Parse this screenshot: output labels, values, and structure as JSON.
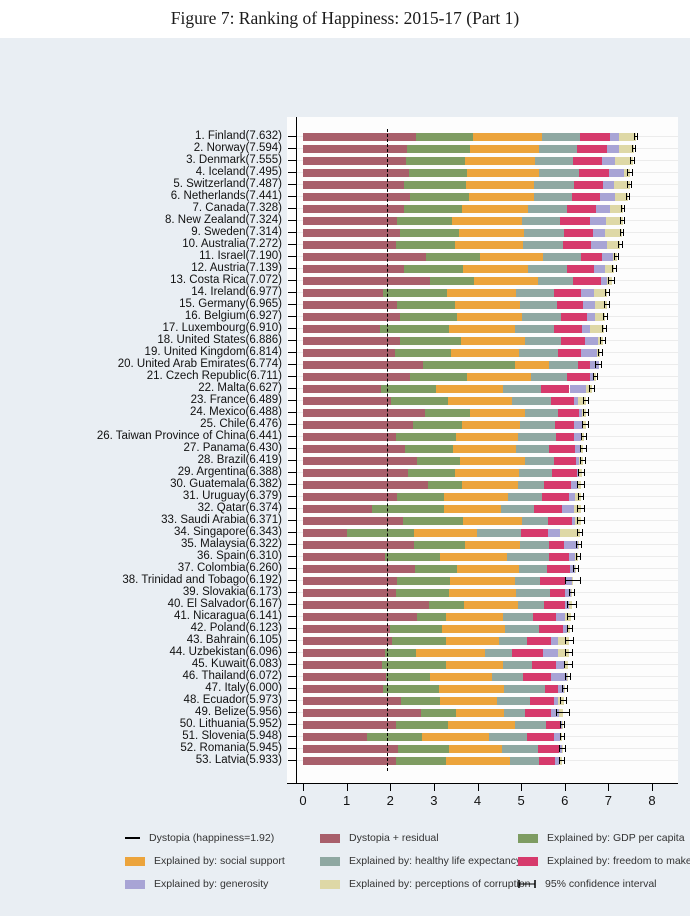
{
  "chart_data": {
    "type": "bar",
    "orientation": "horizontal-stacked",
    "title": "Figure 7: Ranking of Happiness: 2015-17 (Part 1)",
    "xlabel": "",
    "ylabel": "",
    "xlim": [
      0,
      8
    ],
    "xticks": [
      0,
      1,
      2,
      3,
      4,
      5,
      6,
      7,
      8
    ],
    "grid": false,
    "dystopia_line": 1.92,
    "series": [
      {
        "key": "residual",
        "name": "Dystopia + residual",
        "color": "#a85f6b"
      },
      {
        "key": "gdp",
        "name": "Explained by: GDP per capita",
        "color": "#7e9c62"
      },
      {
        "key": "social",
        "name": "Explained by: social support",
        "color": "#eca43c"
      },
      {
        "key": "health",
        "name": "Explained by: healthy life expectancy",
        "color": "#8fa8a2"
      },
      {
        "key": "freedom",
        "name": "Explained by: freedom to make life choices",
        "color": "#d63a6c"
      },
      {
        "key": "generosity",
        "name": "Explained by: generosity",
        "color": "#a8a4d5"
      },
      {
        "key": "corruption",
        "name": "Explained by: perceptions of corruption",
        "color": "#ded8a6"
      }
    ],
    "countries": [
      {
        "rank": 1,
        "name": "Finland",
        "score": 7.632,
        "gdp": 1.305,
        "social": 1.592,
        "health": 0.874,
        "freedom": 0.681,
        "generosity": 0.202,
        "corruption": 0.393,
        "ci": 0.055
      },
      {
        "rank": 2,
        "name": "Norway",
        "score": 7.594,
        "gdp": 1.456,
        "social": 1.582,
        "health": 0.861,
        "freedom": 0.686,
        "generosity": 0.286,
        "corruption": 0.34,
        "ci": 0.05
      },
      {
        "rank": 3,
        "name": "Denmark",
        "score": 7.555,
        "gdp": 1.351,
        "social": 1.59,
        "health": 0.868,
        "freedom": 0.683,
        "generosity": 0.284,
        "corruption": 0.408,
        "ci": 0.055
      },
      {
        "rank": 4,
        "name": "Iceland",
        "score": 7.495,
        "gdp": 1.343,
        "social": 1.644,
        "health": 0.914,
        "freedom": 0.677,
        "generosity": 0.353,
        "corruption": 0.138,
        "ci": 0.06
      },
      {
        "rank": 5,
        "name": "Switzerland",
        "score": 7.487,
        "gdp": 1.42,
        "social": 1.549,
        "health": 0.927,
        "freedom": 0.66,
        "generosity": 0.256,
        "corruption": 0.357,
        "ci": 0.055
      },
      {
        "rank": 6,
        "name": "Netherlands",
        "score": 7.441,
        "gdp": 1.361,
        "social": 1.488,
        "health": 0.878,
        "freedom": 0.638,
        "generosity": 0.333,
        "corruption": 0.295,
        "ci": 0.045
      },
      {
        "rank": 7,
        "name": "Canada",
        "score": 7.328,
        "gdp": 1.33,
        "social": 1.532,
        "health": 0.896,
        "freedom": 0.653,
        "generosity": 0.321,
        "corruption": 0.291,
        "ci": 0.05
      },
      {
        "rank": 8,
        "name": "New Zealand",
        "score": 7.324,
        "gdp": 1.268,
        "social": 1.601,
        "health": 0.876,
        "freedom": 0.669,
        "generosity": 0.365,
        "corruption": 0.389,
        "ci": 0.055
      },
      {
        "rank": 9,
        "name": "Sweden",
        "score": 7.314,
        "gdp": 1.355,
        "social": 1.501,
        "health": 0.913,
        "freedom": 0.659,
        "generosity": 0.285,
        "corruption": 0.383,
        "ci": 0.055
      },
      {
        "rank": 10,
        "name": "Australia",
        "score": 7.272,
        "gdp": 1.34,
        "social": 1.573,
        "health": 0.91,
        "freedom": 0.647,
        "generosity": 0.361,
        "corruption": 0.302,
        "ci": 0.055
      },
      {
        "rank": 11,
        "name": "Israel",
        "score": 7.19,
        "gdp": 1.244,
        "social": 1.433,
        "health": 0.888,
        "freedom": 0.464,
        "generosity": 0.262,
        "corruption": 0.082,
        "ci": 0.06
      },
      {
        "rank": 12,
        "name": "Austria",
        "score": 7.139,
        "gdp": 1.341,
        "social": 1.504,
        "health": 0.891,
        "freedom": 0.617,
        "generosity": 0.242,
        "corruption": 0.224,
        "ci": 0.055
      },
      {
        "rank": 13,
        "name": "Costa Rica",
        "score": 7.072,
        "gdp": 1.01,
        "social": 1.459,
        "health": 0.817,
        "freedom": 0.632,
        "generosity": 0.143,
        "corruption": 0.101,
        "ci": 0.075
      },
      {
        "rank": 14,
        "name": "Ireland",
        "score": 6.977,
        "gdp": 1.448,
        "social": 1.583,
        "health": 0.876,
        "freedom": 0.614,
        "generosity": 0.307,
        "corruption": 0.306,
        "ci": 0.06
      },
      {
        "rank": 15,
        "name": "Germany",
        "score": 6.965,
        "gdp": 1.34,
        "social": 1.474,
        "health": 0.861,
        "freedom": 0.586,
        "generosity": 0.273,
        "corruption": 0.28,
        "ci": 0.065
      },
      {
        "rank": 16,
        "name": "Belgium",
        "score": 6.927,
        "gdp": 1.324,
        "social": 1.483,
        "health": 0.894,
        "freedom": 0.583,
        "generosity": 0.188,
        "corruption": 0.24,
        "ci": 0.055
      },
      {
        "rank": 17,
        "name": "Luxembourg",
        "score": 6.91,
        "gdp": 1.576,
        "social": 1.52,
        "health": 0.896,
        "freedom": 0.632,
        "generosity": 0.196,
        "corruption": 0.321,
        "ci": 0.06
      },
      {
        "rank": 18,
        "name": "United States",
        "score": 6.886,
        "gdp": 1.398,
        "social": 1.471,
        "health": 0.819,
        "freedom": 0.547,
        "generosity": 0.291,
        "corruption": 0.133,
        "ci": 0.07
      },
      {
        "rank": 19,
        "name": "United Kingdom",
        "score": 6.814,
        "gdp": 1.301,
        "social": 1.559,
        "health": 0.883,
        "freedom": 0.533,
        "generosity": 0.354,
        "corruption": 0.082,
        "ci": 0.055
      },
      {
        "rank": 20,
        "name": "United Arab Emirates",
        "score": 6.774,
        "gdp": 2.096,
        "social": 0.776,
        "health": 0.67,
        "freedom": 0.284,
        "generosity": 0.186,
        "corruption": 0.0,
        "ci": 0.075
      },
      {
        "rank": 21,
        "name": "Czech Republic",
        "score": 6.711,
        "gdp": 1.301,
        "social": 1.464,
        "health": 0.835,
        "freedom": 0.517,
        "generosity": 0.098,
        "corruption": 0.034,
        "ci": 0.06
      },
      {
        "rank": 22,
        "name": "Malta",
        "score": 6.627,
        "gdp": 1.27,
        "social": 1.525,
        "health": 0.884,
        "freedom": 0.645,
        "generosity": 0.376,
        "corruption": 0.142,
        "ci": 0.065
      },
      {
        "rank": 23,
        "name": "France",
        "score": 6.489,
        "gdp": 1.293,
        "social": 1.466,
        "health": 0.908,
        "freedom": 0.52,
        "generosity": 0.098,
        "corruption": 0.176,
        "ci": 0.06
      },
      {
        "rank": 24,
        "name": "Mexico",
        "score": 6.488,
        "gdp": 1.038,
        "social": 1.252,
        "health": 0.761,
        "freedom": 0.479,
        "generosity": 0.069,
        "corruption": 0.095,
        "ci": 0.075
      },
      {
        "rank": 25,
        "name": "Chile",
        "score": 6.476,
        "gdp": 1.131,
        "social": 1.331,
        "health": 0.808,
        "freedom": 0.431,
        "generosity": 0.197,
        "corruption": 0.061,
        "ci": 0.07
      },
      {
        "rank": 26,
        "name": "Taiwan Province of China",
        "score": 6.441,
        "gdp": 1.365,
        "social": 1.436,
        "health": 0.857,
        "freedom": 0.418,
        "generosity": 0.151,
        "corruption": 0.078,
        "ci": 0.06
      },
      {
        "rank": 27,
        "name": "Panama",
        "score": 6.43,
        "gdp": 1.112,
        "social": 1.438,
        "health": 0.759,
        "freedom": 0.597,
        "generosity": 0.125,
        "corruption": 0.063,
        "ci": 0.075
      },
      {
        "rank": 28,
        "name": "Brazil",
        "score": 6.419,
        "gdp": 0.986,
        "social": 1.474,
        "health": 0.675,
        "freedom": 0.493,
        "generosity": 0.088,
        "corruption": 0.082,
        "ci": 0.07
      },
      {
        "rank": 29,
        "name": "Argentina",
        "score": 6.388,
        "gdp": 1.073,
        "social": 1.468,
        "health": 0.744,
        "freedom": 0.57,
        "generosity": 0.062,
        "corruption": 0.054,
        "ci": 0.075
      },
      {
        "rank": 30,
        "name": "Guatemala",
        "score": 6.382,
        "gdp": 0.781,
        "social": 1.269,
        "health": 0.608,
        "freedom": 0.604,
        "generosity": 0.179,
        "corruption": 0.071,
        "ci": 0.09
      },
      {
        "rank": 31,
        "name": "Uruguay",
        "score": 6.379,
        "gdp": 1.093,
        "social": 1.459,
        "health": 0.771,
        "freedom": 0.625,
        "generosity": 0.13,
        "corruption": 0.155,
        "ci": 0.07
      },
      {
        "rank": 32,
        "name": "Qatar",
        "score": 6.374,
        "gdp": 1.649,
        "social": 1.303,
        "health": 0.748,
        "freedom": 0.654,
        "generosity": 0.256,
        "corruption": 0.171,
        "ci": 0.1
      },
      {
        "rank": 33,
        "name": "Saudi Arabia",
        "score": 6.371,
        "gdp": 1.379,
        "social": 1.331,
        "health": 0.614,
        "freedom": 0.536,
        "generosity": 0.08,
        "corruption": 0.132,
        "ci": 0.085
      },
      {
        "rank": 34,
        "name": "Singapore",
        "score": 6.343,
        "gdp": 1.529,
        "social": 1.451,
        "health": 1.008,
        "freedom": 0.631,
        "generosity": 0.261,
        "corruption": 0.457,
        "ci": 0.065
      },
      {
        "rank": 35,
        "name": "Malaysia",
        "score": 6.322,
        "gdp": 1.161,
        "social": 1.258,
        "health": 0.669,
        "freedom": 0.356,
        "generosity": 0.31,
        "corruption": 0.024,
        "ci": 0.075
      },
      {
        "rank": 36,
        "name": "Spain",
        "score": 6.31,
        "gdp": 1.251,
        "social": 1.538,
        "health": 0.965,
        "freedom": 0.449,
        "generosity": 0.142,
        "corruption": 0.074,
        "ci": 0.06
      },
      {
        "rank": 37,
        "name": "Colombia",
        "score": 6.26,
        "gdp": 0.96,
        "social": 1.439,
        "health": 0.635,
        "freedom": 0.531,
        "generosity": 0.099,
        "corruption": 0.034,
        "ci": 0.075
      },
      {
        "rank": 38,
        "name": "Trinidad and Tobago",
        "score": 6.192,
        "gdp": 1.223,
        "social": 1.492,
        "health": 0.564,
        "freedom": 0.575,
        "generosity": 0.171,
        "corruption": 0.019,
        "ci": 0.19
      },
      {
        "rank": 39,
        "name": "Slovakia",
        "score": 6.173,
        "gdp": 1.21,
        "social": 1.537,
        "health": 0.776,
        "freedom": 0.354,
        "generosity": 0.136,
        "corruption": 0.024,
        "ci": 0.065
      },
      {
        "rank": 40,
        "name": "El Salvador",
        "score": 6.167,
        "gdp": 0.794,
        "social": 1.242,
        "health": 0.596,
        "freedom": 0.477,
        "generosity": 0.093,
        "corruption": 0.074,
        "ci": 0.105
      },
      {
        "rank": 41,
        "name": "Nicaragua",
        "score": 6.141,
        "gdp": 0.668,
        "social": 1.3,
        "health": 0.7,
        "freedom": 0.527,
        "generosity": 0.208,
        "corruption": 0.128,
        "ci": 0.1
      },
      {
        "rank": 42,
        "name": "Poland",
        "score": 6.123,
        "gdp": 1.176,
        "social": 1.448,
        "health": 0.781,
        "freedom": 0.546,
        "generosity": 0.108,
        "corruption": 0.064,
        "ci": 0.065
      },
      {
        "rank": 43,
        "name": "Bahrain",
        "score": 6.105,
        "gdp": 1.223,
        "social": 1.215,
        "health": 0.657,
        "freedom": 0.536,
        "generosity": 0.172,
        "corruption": 0.257,
        "ci": 0.1
      },
      {
        "rank": 44,
        "name": "Uzbekistan",
        "score": 6.096,
        "gdp": 0.719,
        "social": 1.584,
        "health": 0.605,
        "freedom": 0.724,
        "generosity": 0.328,
        "corruption": 0.259,
        "ci": 0.085
      },
      {
        "rank": 45,
        "name": "Kuwait",
        "score": 6.083,
        "gdp": 1.474,
        "social": 1.301,
        "health": 0.675,
        "freedom": 0.554,
        "generosity": 0.167,
        "corruption": 0.106,
        "ci": 0.095
      },
      {
        "rank": 46,
        "name": "Thailand",
        "score": 6.072,
        "gdp": 1.016,
        "social": 1.417,
        "health": 0.707,
        "freedom": 0.637,
        "generosity": 0.364,
        "corruption": 0.029,
        "ci": 0.075
      },
      {
        "rank": 47,
        "name": "Italy",
        "score": 6.0,
        "gdp": 1.264,
        "social": 1.501,
        "health": 0.946,
        "freedom": 0.281,
        "generosity": 0.137,
        "corruption": 0.028,
        "ci": 0.07
      },
      {
        "rank": 48,
        "name": "Ecuador",
        "score": 5.973,
        "gdp": 0.896,
        "social": 1.312,
        "health": 0.761,
        "freedom": 0.544,
        "generosity": 0.105,
        "corruption": 0.12,
        "ci": 0.08
      },
      {
        "rank": 49,
        "name": "Belize",
        "score": 5.956,
        "gdp": 0.807,
        "social": 1.101,
        "health": 0.474,
        "freedom": 0.593,
        "generosity": 0.183,
        "corruption": 0.089,
        "ci": 0.16
      },
      {
        "rank": 50,
        "name": "Lithuania",
        "score": 5.952,
        "gdp": 1.197,
        "social": 1.527,
        "health": 0.716,
        "freedom": 0.35,
        "generosity": 0.026,
        "corruption": 0.006,
        "ci": 0.065
      },
      {
        "rank": 51,
        "name": "Slovenia",
        "score": 5.948,
        "gdp": 1.258,
        "social": 1.523,
        "health": 0.886,
        "freedom": 0.603,
        "generosity": 0.144,
        "corruption": 0.057,
        "ci": 0.06
      },
      {
        "rank": 52,
        "name": "Romania",
        "score": 5.945,
        "gdp": 1.162,
        "social": 1.232,
        "health": 0.825,
        "freedom": 0.462,
        "generosity": 0.083,
        "corruption": 0.004,
        "ci": 0.085
      },
      {
        "rank": 53,
        "name": "Latvia",
        "score": 5.933,
        "gdp": 1.148,
        "social": 1.454,
        "health": 0.671,
        "freedom": 0.363,
        "generosity": 0.092,
        "corruption": 0.066,
        "ci": 0.065
      }
    ]
  },
  "legend": {
    "items": [
      {
        "marker": "line",
        "color": "#000000",
        "label": "Dystopia (happiness=1.92)",
        "col": 0,
        "row": 0
      },
      {
        "marker": "swatch",
        "color": "#a85f6b",
        "label": "Dystopia + residual",
        "col": 1,
        "row": 0
      },
      {
        "marker": "swatch",
        "color": "#7e9c62",
        "label": "Explained by: GDP per capita",
        "col": 2,
        "row": 0
      },
      {
        "marker": "swatch",
        "color": "#eca43c",
        "label": "Explained by: social support",
        "col": 0,
        "row": 1
      },
      {
        "marker": "swatch",
        "color": "#8fa8a2",
        "label": "Explained by: healthy life expectancy",
        "col": 1,
        "row": 1
      },
      {
        "marker": "swatch",
        "color": "#d63a6c",
        "label": "Explained by: freedom to make life choices",
        "col": 2,
        "row": 1
      },
      {
        "marker": "swatch",
        "color": "#a8a4d5",
        "label": "Explained by: generosity",
        "col": 0,
        "row": 2
      },
      {
        "marker": "swatch",
        "color": "#ded8a6",
        "label": "Explained by: perceptions of corruption",
        "col": 1,
        "row": 2
      },
      {
        "marker": "errbar",
        "color": "#000000",
        "label": "95% confidence interval",
        "col": 2,
        "row": 2
      }
    ]
  },
  "colors": {
    "page_background": "#e9eef3",
    "plot_background": "#fdfdfd",
    "axis": "#000000",
    "gridline": "#ececec"
  }
}
